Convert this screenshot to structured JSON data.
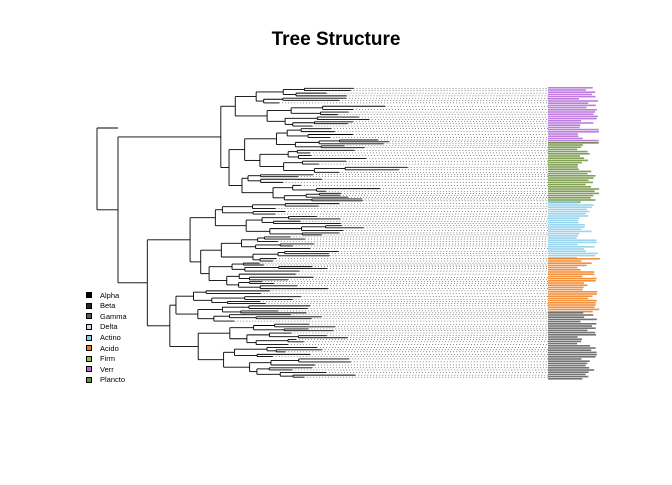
{
  "title": "Tree Structure",
  "legend": [
    {
      "label": "Alpha",
      "color": "#000000"
    },
    {
      "label": "Beta",
      "color": "#262626"
    },
    {
      "label": "Gamma",
      "color": "#595959"
    },
    {
      "label": "Delta",
      "color": "#c6dbef"
    },
    {
      "label": "Actino",
      "color": "#87ceeb"
    },
    {
      "label": "Acido",
      "color": "#f07d1a"
    },
    {
      "label": "Firm",
      "color": "#8fc64a"
    },
    {
      "label": "Verr",
      "color": "#b266d9"
    },
    {
      "label": "Plancto",
      "color": "#6b8e3a"
    }
  ],
  "tip_groups": [
    {
      "clade": "Verr",
      "color": "#b266d9"
    },
    {
      "clade": "Plancto",
      "color": "#6b8e3a"
    },
    {
      "clade": "Actino",
      "color": "#87ceeb"
    },
    {
      "clade": "Acido",
      "color": "#f07d1a"
    },
    {
      "clade": "Gamma",
      "color": "#595959"
    }
  ]
}
